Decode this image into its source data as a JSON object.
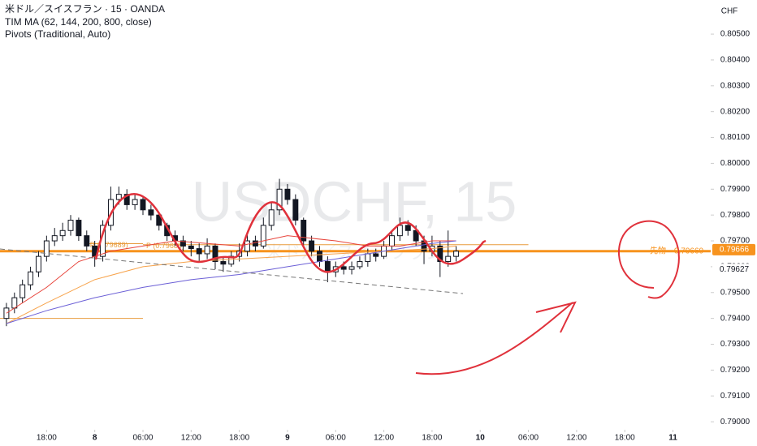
{
  "chart_data": {
    "type": "candlestick",
    "title": "米ドル／スイスフラン · 15 · OANDA",
    "indicators": [
      "TIM MA (62, 144, 200, 800, close)",
      "Pivots (Traditional, Auto)"
    ],
    "currency": "CHF",
    "watermark": "USDCHF, 15",
    "watermark_sub": "米ドル／スイスフラン",
    "xlim": [
      -11.8,
      76.7
    ],
    "ylim": [
      0.78969,
      0.80632
    ],
    "xticks": [
      {
        "value": -6,
        "label": "18:00"
      },
      {
        "value": 0,
        "label": "8"
      },
      {
        "value": 6,
        "label": "06:00"
      },
      {
        "value": 12,
        "label": "12:00"
      },
      {
        "value": 18,
        "label": "18:00"
      },
      {
        "value": 24,
        "label": "9"
      },
      {
        "value": 30,
        "label": "06:00"
      },
      {
        "value": 36,
        "label": "12:00"
      },
      {
        "value": 42,
        "label": "18:00"
      },
      {
        "value": 48,
        "label": "10"
      },
      {
        "value": 54,
        "label": "06:00"
      },
      {
        "value": 60,
        "label": "12:00"
      },
      {
        "value": 66,
        "label": "18:00"
      },
      {
        "value": 72,
        "label": "11"
      }
    ],
    "yticks": [
      {
        "value": 0.79,
        "label": "0.79000"
      },
      {
        "value": 0.791,
        "label": "0.79100"
      },
      {
        "value": 0.792,
        "label": "0.79200"
      },
      {
        "value": 0.793,
        "label": "0.79300"
      },
      {
        "value": 0.794,
        "label": "0.79400"
      },
      {
        "value": 0.795,
        "label": "0.79500"
      },
      {
        "value": 0.796,
        "label": "0.79600"
      },
      {
        "value": 0.797,
        "label": "0.79700"
      },
      {
        "value": 0.798,
        "label": "0.79800"
      },
      {
        "value": 0.799,
        "label": "0.79900"
      },
      {
        "value": 0.8,
        "label": "0.80000"
      },
      {
        "value": 0.801,
        "label": "0.80100"
      },
      {
        "value": 0.802,
        "label": "0.80200"
      },
      {
        "value": 0.803,
        "label": "0.80300"
      },
      {
        "value": 0.804,
        "label": "0.80400"
      },
      {
        "value": 0.805,
        "label": "0.80500"
      }
    ],
    "x": [
      -11,
      -10,
      -9,
      -8,
      -7,
      -6,
      -5,
      -4,
      -3,
      -2,
      -1,
      0,
      1,
      2,
      3,
      4,
      5,
      6,
      7,
      8,
      9,
      10,
      11,
      12,
      13,
      14,
      15,
      16,
      17,
      18,
      19,
      20,
      21,
      22,
      23,
      24,
      25,
      26,
      27,
      28,
      29,
      30,
      31,
      32,
      33,
      34,
      35,
      36,
      37,
      38,
      39,
      40,
      41,
      42,
      43,
      44,
      45
    ],
    "candles": [
      [
        0.794,
        0.7946,
        0.7937,
        0.7944
      ],
      [
        0.7944,
        0.795,
        0.7942,
        0.7948
      ],
      [
        0.7948,
        0.7955,
        0.7946,
        0.7953
      ],
      [
        0.7953,
        0.796,
        0.7951,
        0.7958
      ],
      [
        0.7958,
        0.7966,
        0.7956,
        0.7964
      ],
      [
        0.7964,
        0.7972,
        0.7962,
        0.797
      ],
      [
        0.797,
        0.7975,
        0.7968,
        0.7972
      ],
      [
        0.7972,
        0.7977,
        0.797,
        0.7974
      ],
      [
        0.7974,
        0.798,
        0.7972,
        0.7978
      ],
      [
        0.7978,
        0.7979,
        0.797,
        0.7972
      ],
      [
        0.7972,
        0.7974,
        0.7966,
        0.7968
      ],
      [
        0.7968,
        0.797,
        0.796,
        0.7964
      ],
      [
        0.7964,
        0.7978,
        0.7962,
        0.7976
      ],
      [
        0.7976,
        0.7991,
        0.7974,
        0.7986
      ],
      [
        0.7986,
        0.7991,
        0.7984,
        0.7988
      ],
      [
        0.7988,
        0.799,
        0.7982,
        0.7984
      ],
      [
        0.7984,
        0.7988,
        0.7982,
        0.7986
      ],
      [
        0.7986,
        0.7987,
        0.798,
        0.7982
      ],
      [
        0.7982,
        0.7984,
        0.7978,
        0.798
      ],
      [
        0.798,
        0.7981,
        0.7974,
        0.7976
      ],
      [
        0.7976,
        0.7977,
        0.797,
        0.7972
      ],
      [
        0.7972,
        0.7974,
        0.7968,
        0.797
      ],
      [
        0.797,
        0.7972,
        0.7966,
        0.7968
      ],
      [
        0.7968,
        0.797,
        0.7964,
        0.7967
      ],
      [
        0.7967,
        0.7969,
        0.7962,
        0.7965
      ],
      [
        0.7965,
        0.7971,
        0.7963,
        0.7968
      ],
      [
        0.7968,
        0.7969,
        0.7959,
        0.7962
      ],
      [
        0.7962,
        0.7964,
        0.7958,
        0.7961
      ],
      [
        0.7961,
        0.7966,
        0.796,
        0.7964
      ],
      [
        0.7964,
        0.7969,
        0.7962,
        0.7966
      ],
      [
        0.7966,
        0.7973,
        0.7964,
        0.797
      ],
      [
        0.797,
        0.7972,
        0.7966,
        0.7968
      ],
      [
        0.7968,
        0.7979,
        0.7967,
        0.7976
      ],
      [
        0.7976,
        0.7985,
        0.7974,
        0.7982
      ],
      [
        0.7982,
        0.7994,
        0.798,
        0.799
      ],
      [
        0.799,
        0.7992,
        0.7984,
        0.7986
      ],
      [
        0.7986,
        0.7988,
        0.7976,
        0.7978
      ],
      [
        0.7978,
        0.7979,
        0.7968,
        0.797
      ],
      [
        0.797,
        0.7972,
        0.7964,
        0.7966
      ],
      [
        0.7966,
        0.7968,
        0.796,
        0.7962
      ],
      [
        0.7962,
        0.7964,
        0.7954,
        0.7958
      ],
      [
        0.7958,
        0.7962,
        0.7956,
        0.796
      ],
      [
        0.796,
        0.7962,
        0.7957,
        0.7959
      ],
      [
        0.7959,
        0.7962,
        0.7957,
        0.796
      ],
      [
        0.796,
        0.7964,
        0.7959,
        0.7962
      ],
      [
        0.7962,
        0.7967,
        0.796,
        0.7965
      ],
      [
        0.7965,
        0.7967,
        0.7962,
        0.7964
      ],
      [
        0.7964,
        0.797,
        0.7963,
        0.7968
      ],
      [
        0.7968,
        0.7974,
        0.7966,
        0.7972
      ],
      [
        0.7972,
        0.7979,
        0.797,
        0.7976
      ],
      [
        0.7976,
        0.7978,
        0.7972,
        0.7974
      ],
      [
        0.7974,
        0.7976,
        0.7968,
        0.797
      ],
      [
        0.797,
        0.7972,
        0.7961,
        0.7966
      ],
      [
        0.7966,
        0.7972,
        0.7964,
        0.7968
      ],
      [
        0.7968,
        0.797,
        0.7956,
        0.7962
      ],
      [
        0.7962,
        0.7974,
        0.796,
        0.7964
      ],
      [
        0.7964,
        0.7968,
        0.7962,
        0.7966
      ]
    ],
    "series": [
      {
        "color": "#e8453c",
        "x": [
          -11,
          -6,
          -2,
          2,
          6,
          10,
          14,
          18,
          24,
          30,
          34,
          38,
          42,
          45
        ],
        "values": [
          0.7942,
          0.7952,
          0.7962,
          0.7966,
          0.7968,
          0.797,
          0.7969,
          0.7968,
          0.7972,
          0.797,
          0.7968,
          0.7968,
          0.797,
          0.797
        ]
      },
      {
        "color": "#f7a34b",
        "x": [
          -11,
          -6,
          0,
          6,
          12,
          18,
          24,
          30,
          36,
          42,
          45
        ],
        "values": [
          0.7938,
          0.7946,
          0.7955,
          0.796,
          0.7962,
          0.7963,
          0.7964,
          0.7965,
          0.7966,
          0.7967,
          0.7968
        ]
      },
      {
        "color": "#6b5fd6",
        "x": [
          -11,
          -6,
          0,
          6,
          12,
          18,
          24,
          30,
          36,
          42,
          45
        ],
        "values": [
          0.7938,
          0.7943,
          0.7948,
          0.7952,
          0.7955,
          0.7957,
          0.796,
          0.7963,
          0.7966,
          0.7969,
          0.797
        ]
      }
    ],
    "pivots": [
      {
        "label": "P (0.79689)",
        "value": 0.79689,
        "from": -1,
        "to": 6
      },
      {
        "label": "P (0.79685)",
        "value": 0.79685,
        "from": 6,
        "to": 54
      },
      {
        "value": 0.794,
        "from": -11.8,
        "to": 6
      }
    ],
    "price_line": {
      "label": "先物",
      "value": {
        "value": 0.7966,
        "label": "0.79660"
      },
      "color": "#f7931e"
    },
    "axis_markers": [
      {
        "value": 0.79666,
        "color": "#f7931e"
      },
      {
        "value": 0.79627,
        "color": "#ffffff"
      }
    ]
  }
}
